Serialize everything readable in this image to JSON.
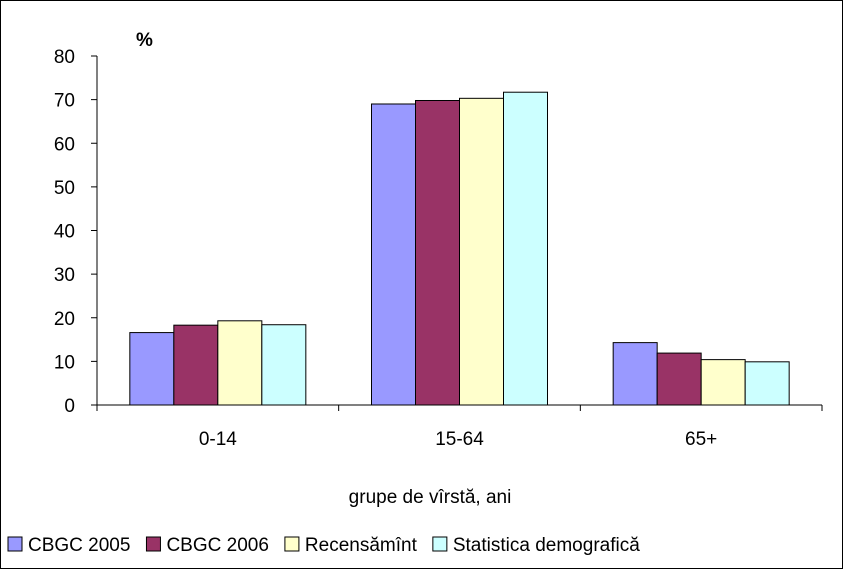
{
  "chart_data": {
    "type": "bar",
    "title": "",
    "unit_label": "%",
    "xlabel": "grupe de vîrstă, ani",
    "ylabel": "",
    "categories": [
      "0-14",
      "15-64",
      "65+"
    ],
    "ylim": [
      0,
      80
    ],
    "yticks": [
      0,
      10,
      20,
      30,
      40,
      50,
      60,
      70,
      80
    ],
    "grid": false,
    "legend_position": "bottom",
    "series": [
      {
        "name": "CBGC 2005",
        "color": "#9999ff",
        "values": [
          16.6,
          69.0,
          14.3
        ]
      },
      {
        "name": "CBGC 2006",
        "color": "#993366",
        "values": [
          18.3,
          69.8,
          11.9
        ]
      },
      {
        "name": "Recensămînt",
        "color": "#ffffcc",
        "values": [
          19.3,
          70.3,
          10.4
        ]
      },
      {
        "name": "Statistica demografică",
        "color": "#ccffff",
        "values": [
          18.4,
          71.7,
          9.9
        ]
      }
    ]
  }
}
